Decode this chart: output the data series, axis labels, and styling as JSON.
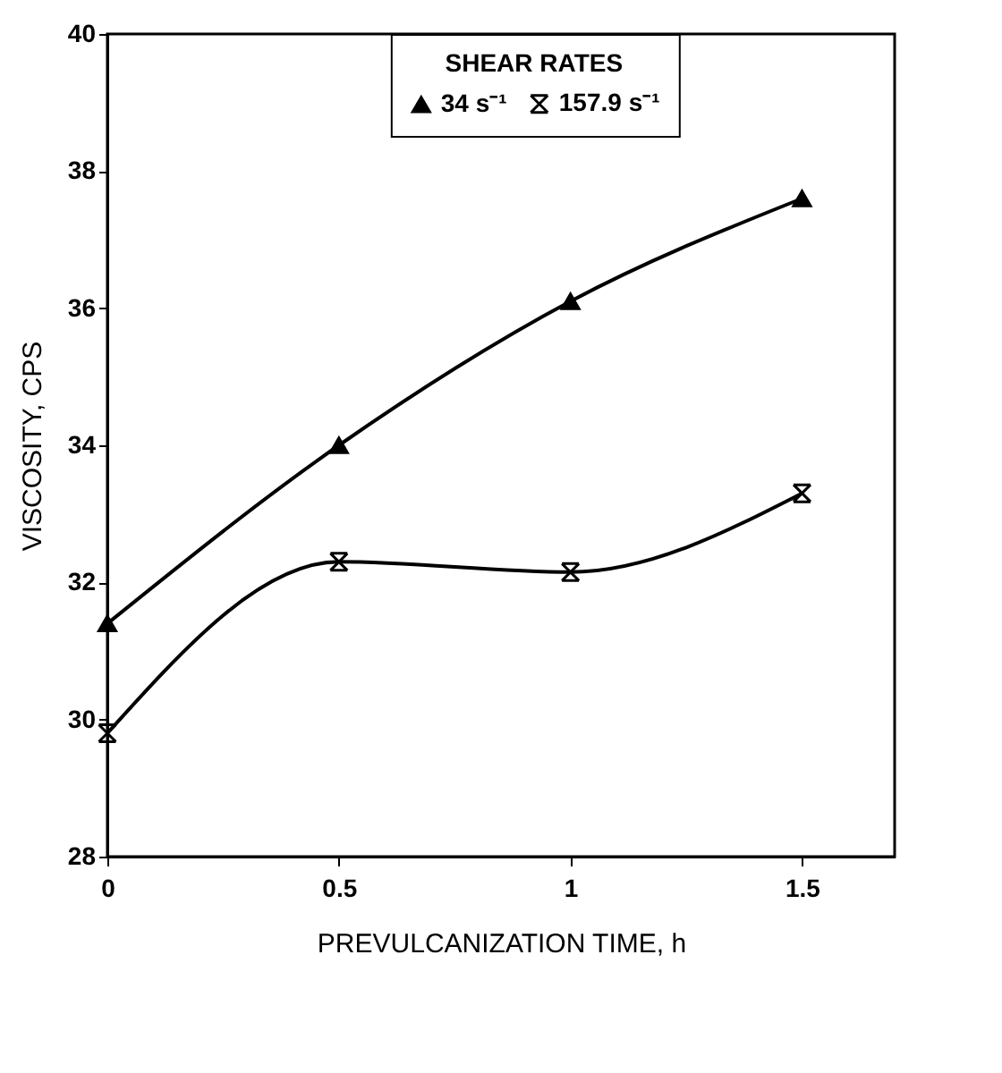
{
  "chart_data": {
    "type": "line",
    "xlabel": "PREVULCANIZATION TIME, h",
    "ylabel": "VISCOSITY, CPS",
    "legend_title": "SHEAR RATES",
    "x": [
      0,
      0.5,
      1,
      1.5
    ],
    "series": [
      {
        "name": "34 s⁻¹",
        "color": "#000000",
        "marker": "triangle",
        "values": [
          31.4,
          34.0,
          36.1,
          37.6
        ]
      },
      {
        "name": "157.9 s⁻¹",
        "color": "#000000",
        "marker": "cross",
        "values": [
          29.8,
          32.3,
          32.15,
          33.3
        ]
      }
    ],
    "xlim": [
      0,
      1.7
    ],
    "xticks": [
      0,
      0.5,
      1,
      1.5
    ],
    "ylim": [
      28,
      40
    ],
    "yticks": [
      28,
      30,
      32,
      34,
      36,
      38,
      40
    ],
    "grid": false,
    "legend": "top",
    "line_style": "solid"
  }
}
